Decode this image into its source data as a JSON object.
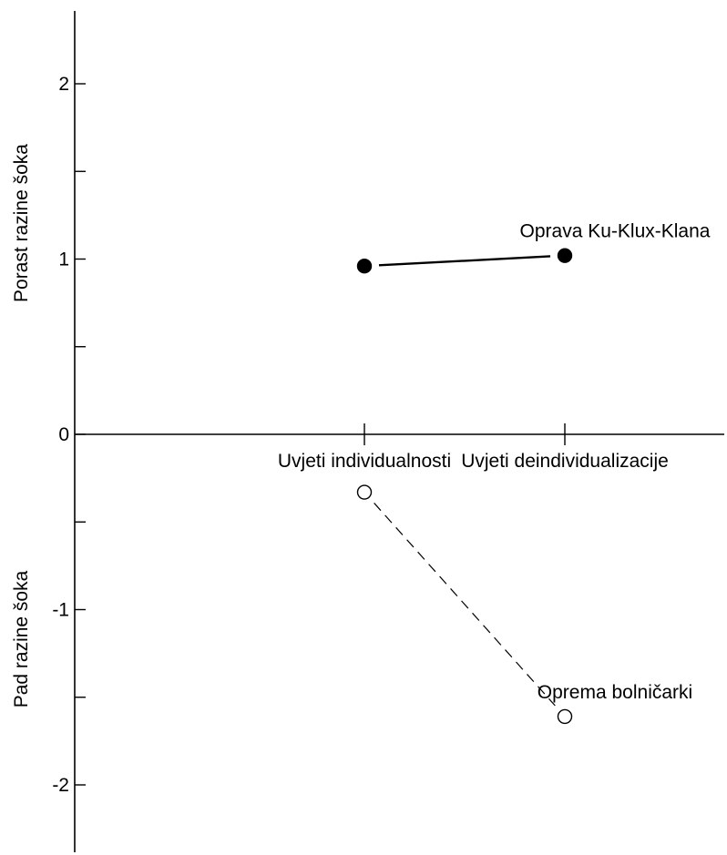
{
  "chart_data": {
    "type": "line",
    "categories": [
      "Uvjeti individualnosti",
      "Uvjeti deindividualizacije"
    ],
    "ylim": [
      -2.4,
      2.4
    ],
    "yticks_labeled": [
      2,
      1,
      0,
      -1,
      -2
    ],
    "yticks_minor": [
      1.5,
      0.5,
      -0.5,
      -1.5
    ],
    "ylabel_upper": "Porast razine šoka",
    "ylabel_lower": "Pad razine šoka",
    "grid": false,
    "series": [
      {
        "name": "Oprava Ku-Klux-Klana",
        "values": [
          0.96,
          1.02
        ],
        "marker": "filled-circle",
        "line": "solid",
        "color": "#000000"
      },
      {
        "name": "Oprema bolničarki",
        "values": [
          -0.33,
          -1.61
        ],
        "marker": "open-circle",
        "line": "dashed",
        "color": "#000000"
      }
    ]
  }
}
